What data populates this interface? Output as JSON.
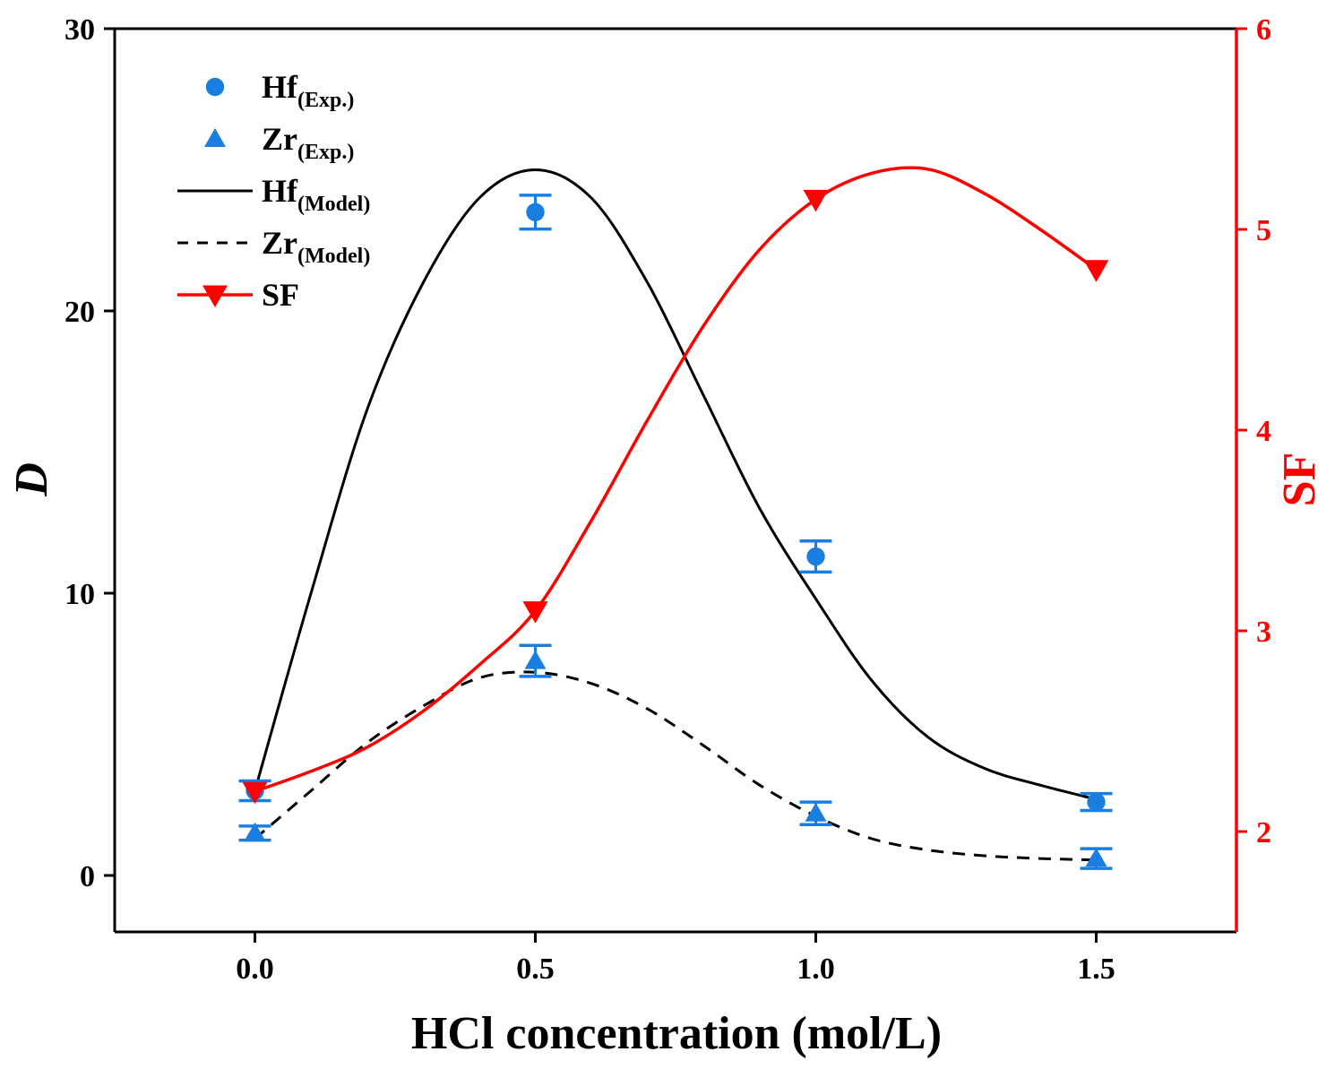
{
  "colors": {
    "axis": "#000000",
    "accent_red": "#ff0000",
    "marker_blue": "#1a7de0",
    "model_line": "#000000"
  },
  "chart_data": {
    "type": "line",
    "xlabel": "HCl concentration (mol/L)",
    "ylabel": "D",
    "y2label": "SF",
    "xlim": [
      -0.25,
      1.75
    ],
    "ylim": [
      -2,
      30
    ],
    "y2lim": [
      1.5,
      6
    ],
    "x_ticks": [
      0.0,
      0.5,
      1.0,
      1.5
    ],
    "x_tick_labels": [
      "0.0",
      "0.5",
      "1.0",
      "1.5"
    ],
    "y_ticks": [
      0,
      10,
      20,
      30
    ],
    "y_tick_labels": [
      "0",
      "10",
      "20",
      "30"
    ],
    "y2_ticks": [
      2,
      3,
      4,
      5,
      6
    ],
    "y2_tick_labels": [
      "2",
      "3",
      "4",
      "5",
      "6"
    ],
    "legend_position": "top-left",
    "series": [
      {
        "name": "Hf",
        "subscript": "(Exp.)",
        "kind": "scatter",
        "marker": "circle",
        "axis": "left",
        "x": [
          0.0,
          0.5,
          1.0,
          1.5
        ],
        "y": [
          3.0,
          23.5,
          11.3,
          2.6
        ],
        "error": [
          0.35,
          0.6,
          0.55,
          0.3
        ]
      },
      {
        "name": "Zr",
        "subscript": "(Exp.)",
        "kind": "scatter",
        "marker": "triangle-up",
        "axis": "left",
        "x": [
          0.0,
          0.5,
          1.0,
          1.5
        ],
        "y": [
          1.5,
          7.6,
          2.2,
          0.6
        ],
        "error": [
          0.25,
          0.55,
          0.4,
          0.35
        ]
      },
      {
        "name": "Hf",
        "subscript": "(Model)",
        "kind": "line",
        "style": "solid",
        "axis": "left",
        "x": [
          0.0,
          0.1,
          0.2,
          0.3,
          0.4,
          0.5,
          0.6,
          0.7,
          0.8,
          0.9,
          1.0,
          1.1,
          1.2,
          1.3,
          1.4,
          1.5
        ],
        "y": [
          3.0,
          10.0,
          16.5,
          21.0,
          24.0,
          25.0,
          24.0,
          21.0,
          17.0,
          13.0,
          9.8,
          6.9,
          4.9,
          3.8,
          3.2,
          2.7
        ]
      },
      {
        "name": "Zr",
        "subscript": "(Model)",
        "kind": "line",
        "style": "dashed",
        "axis": "left",
        "x": [
          0.0,
          0.1,
          0.2,
          0.3,
          0.4,
          0.5,
          0.6,
          0.7,
          0.8,
          0.9,
          1.0,
          1.1,
          1.2,
          1.3,
          1.4,
          1.5
        ],
        "y": [
          1.3,
          3.0,
          4.7,
          6.0,
          7.0,
          7.2,
          6.8,
          5.9,
          4.6,
          3.2,
          2.1,
          1.3,
          0.9,
          0.7,
          0.6,
          0.55
        ]
      },
      {
        "name": "SF",
        "subscript": "",
        "kind": "line+marker",
        "marker": "triangle-down",
        "axis": "right",
        "x": [
          0.0,
          0.1,
          0.2,
          0.3,
          0.4,
          0.5,
          0.6,
          0.7,
          0.8,
          0.9,
          1.0,
          1.1,
          1.2,
          1.3,
          1.4,
          1.5
        ],
        "y": [
          2.2,
          2.3,
          2.42,
          2.6,
          2.83,
          3.1,
          3.55,
          4.05,
          4.52,
          4.9,
          5.15,
          5.28,
          5.3,
          5.18,
          5.0,
          4.8
        ],
        "marker_x": [
          0.0,
          0.5,
          1.0,
          1.5
        ],
        "marker_y": [
          2.2,
          3.1,
          5.15,
          4.8
        ]
      }
    ]
  }
}
